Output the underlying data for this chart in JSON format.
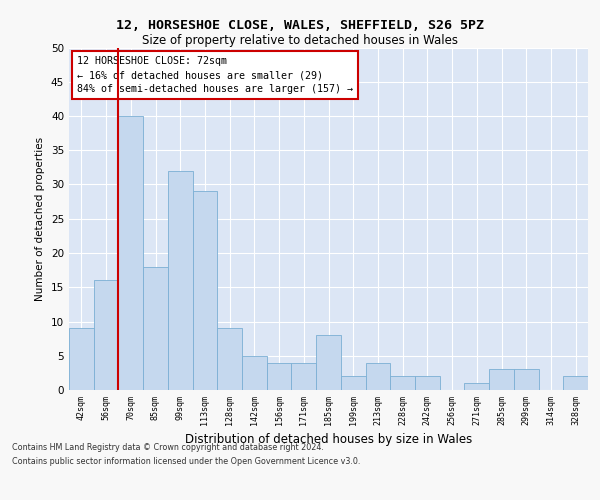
{
  "title1": "12, HORSESHOE CLOSE, WALES, SHEFFIELD, S26 5PZ",
  "title2": "Size of property relative to detached houses in Wales",
  "xlabel": "Distribution of detached houses by size in Wales",
  "ylabel": "Number of detached properties",
  "categories": [
    "42sqm",
    "56sqm",
    "70sqm",
    "85sqm",
    "99sqm",
    "113sqm",
    "128sqm",
    "142sqm",
    "156sqm",
    "171sqm",
    "185sqm",
    "199sqm",
    "213sqm",
    "228sqm",
    "242sqm",
    "256sqm",
    "271sqm",
    "285sqm",
    "299sqm",
    "314sqm",
    "328sqm"
  ],
  "values": [
    9,
    16,
    40,
    18,
    32,
    29,
    9,
    5,
    4,
    4,
    8,
    2,
    4,
    2,
    2,
    0,
    1,
    3,
    3,
    0,
    2
  ],
  "bar_color": "#c5d8ee",
  "bar_edge_color": "#7bafd4",
  "vline_x": 1.5,
  "vline_color": "#cc0000",
  "annotation_line1": "12 HORSESHOE CLOSE: 72sqm",
  "annotation_line2": "← 16% of detached houses are smaller (29)",
  "annotation_line3": "84% of semi-detached houses are larger (157) →",
  "annotation_box_color": "#cc0000",
  "ylim": [
    0,
    50
  ],
  "yticks": [
    0,
    5,
    10,
    15,
    20,
    25,
    30,
    35,
    40,
    45,
    50
  ],
  "footer1": "Contains HM Land Registry data © Crown copyright and database right 2024.",
  "footer2": "Contains public sector information licensed under the Open Government Licence v3.0.",
  "fig_bg_color": "#f8f8f8",
  "plot_bg_color": "#dce6f5"
}
